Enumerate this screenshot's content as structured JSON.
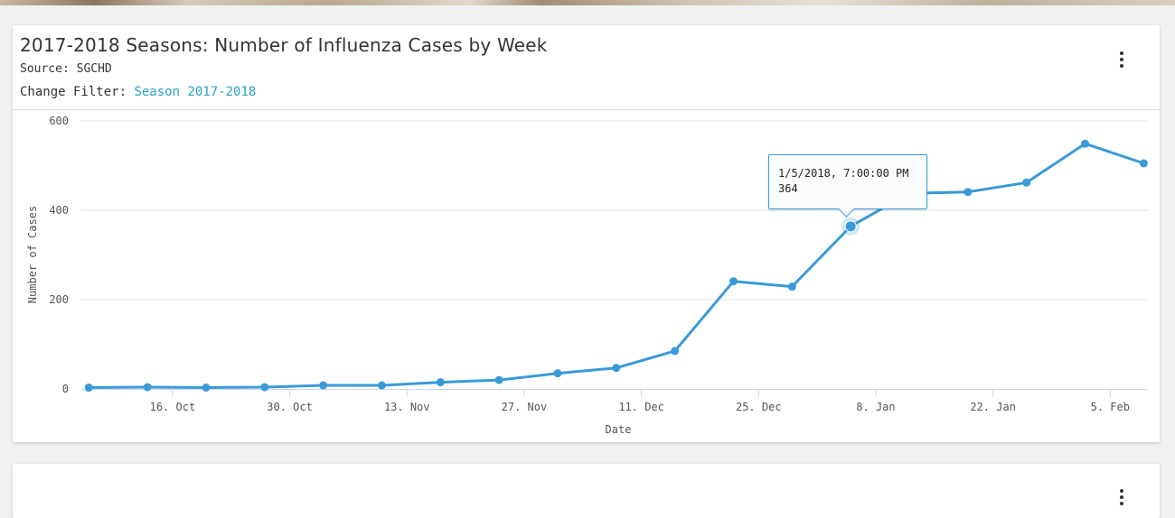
{
  "card": {
    "title": "2017-2018 Seasons: Number of Influenza Cases by Week",
    "source": "Source: SGCHD",
    "filter_label": "Change Filter: ",
    "filter_value": "Season 2017-2018"
  },
  "tooltip": {
    "date": "1/5/2018, 7:00:00 PM",
    "value": "364"
  },
  "chart_data": {
    "type": "line",
    "title": "2017-2018 Seasons: Number of Influenza Cases by Week",
    "xlabel": "Date",
    "ylabel": "Number of Cases",
    "x": [
      "2017-10-06",
      "2017-10-13",
      "2017-10-20",
      "2017-10-27",
      "2017-11-03",
      "2017-11-10",
      "2017-11-17",
      "2017-11-24",
      "2017-12-01",
      "2017-12-08",
      "2017-12-15",
      "2017-12-22",
      "2017-12-29",
      "2018-01-05",
      "2018-01-12",
      "2018-01-19",
      "2018-01-26",
      "2018-02-02",
      "2018-02-09"
    ],
    "series": [
      {
        "values": [
          3,
          4,
          3,
          4,
          8,
          8,
          15,
          20,
          35,
          47,
          85,
          241,
          229,
          364,
          438,
          441,
          462,
          549,
          505
        ]
      }
    ],
    "ylim": [
      0,
      600
    ],
    "y_ticks": [
      0,
      200,
      400,
      600
    ],
    "x_tick_dates": [
      "2017-10-16",
      "2017-10-30",
      "2017-11-13",
      "2017-11-27",
      "2017-12-11",
      "2017-12-25",
      "2018-01-08",
      "2018-01-22",
      "2018-02-05"
    ],
    "x_tick_labels": [
      "16. Oct",
      "30. Oct",
      "13. Nov",
      "27. Nov",
      "11. Dec",
      "25. Dec",
      "8. Jan",
      "22. Jan",
      "5. Feb"
    ],
    "highlighted_index": 13,
    "grid": true,
    "legend": "none",
    "line_color": "#3a9ad9"
  }
}
